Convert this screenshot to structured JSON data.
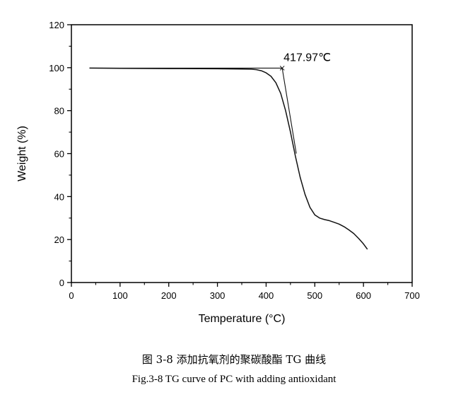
{
  "chart_data": {
    "type": "line",
    "xlabel": "Temperature (°C)",
    "ylabel": "Weight (%)",
    "xlim": [
      0,
      700
    ],
    "ylim": [
      0,
      120
    ],
    "xticks": [
      0,
      100,
      200,
      300,
      400,
      500,
      600,
      700
    ],
    "yticks": [
      0,
      20,
      40,
      60,
      80,
      100,
      120
    ],
    "grid": false,
    "series": [
      {
        "x": [
          37,
          100,
          200,
          300,
          350,
          370,
          380,
          390,
          400,
          410,
          420,
          430,
          440,
          450,
          460,
          470,
          480,
          490,
          500,
          510,
          520,
          530,
          540,
          550,
          560,
          570,
          580,
          590,
          600,
          608
        ],
        "y": [
          99.8,
          99.7,
          99.6,
          99.5,
          99.4,
          99.3,
          99.1,
          98.6,
          97.6,
          96.0,
          93.0,
          88.0,
          80.0,
          70.0,
          59.0,
          49.0,
          41.0,
          35.0,
          31.5,
          30.0,
          29.3,
          28.8,
          28.0,
          27.2,
          26.0,
          24.5,
          22.8,
          20.5,
          18.0,
          15.5
        ]
      }
    ],
    "tangents": [
      {
        "x": [
          38,
          433
        ],
        "y": [
          99.8,
          99.8
        ]
      },
      {
        "x": [
          433,
          462
        ],
        "y": [
          99.8,
          60
        ]
      }
    ],
    "annotations": [
      {
        "text": "417.97℃",
        "x": 433,
        "y": 99.8
      }
    ]
  },
  "caption": {
    "chinese": "图 3-8  添加抗氧剂的聚碳酸酯 TG 曲线",
    "english": "Fig.3-8 TG curve of PC with adding antioxidant"
  }
}
